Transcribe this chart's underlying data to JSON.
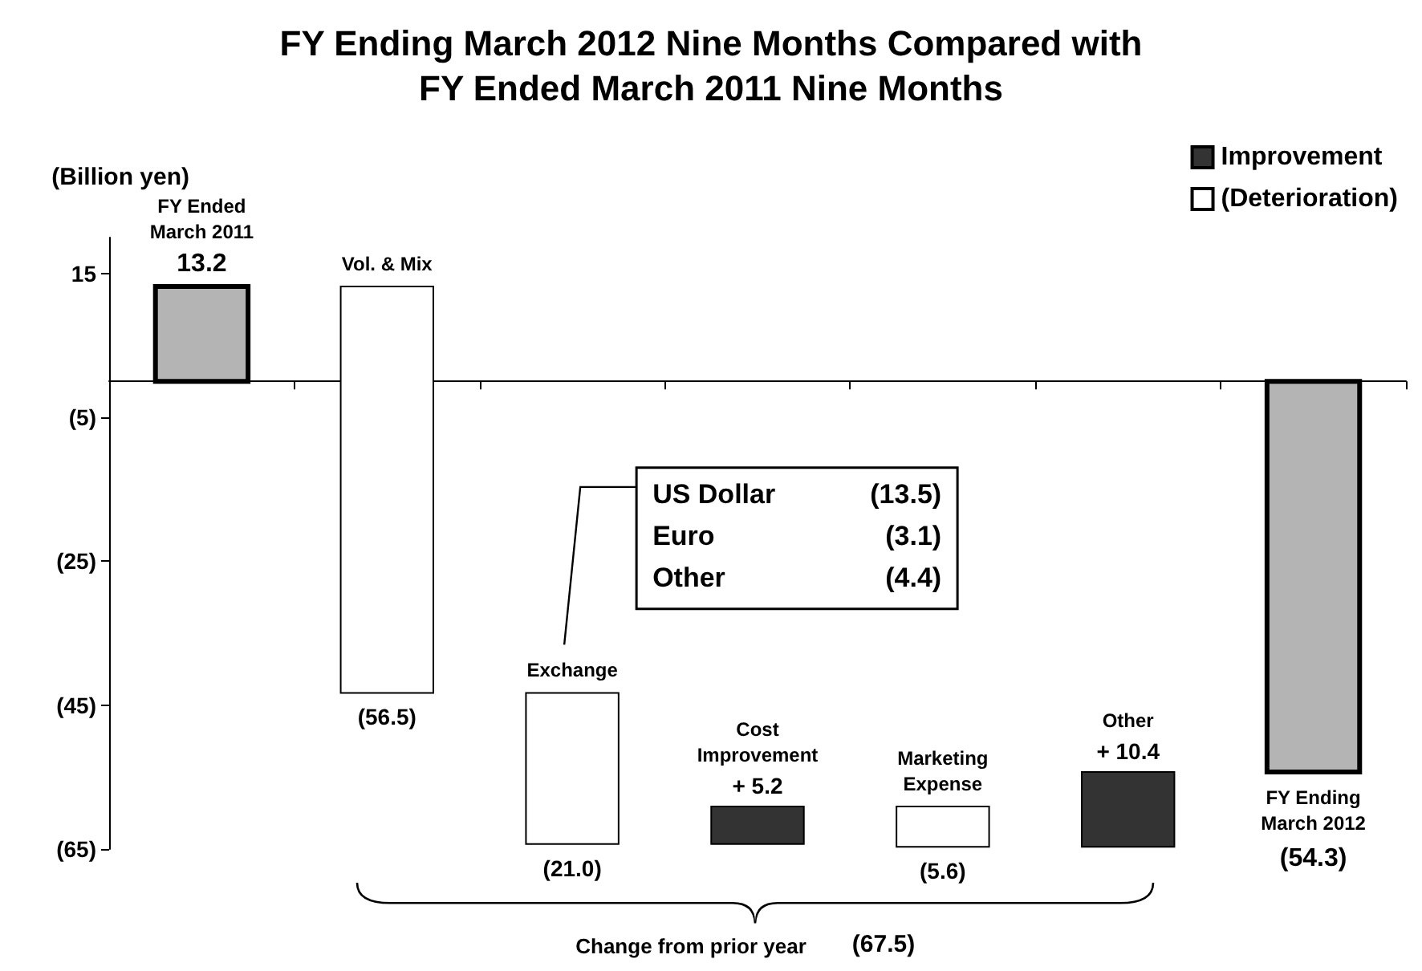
{
  "chart_data": {
    "type": "bar",
    "title": "FY Ending March 2012 Nine Months Compared with\nFY Ended March 2011 Nine Months",
    "ylabel": "(Billion yen)",
    "categories": [
      "FY Ended\nMarch 2011",
      "Vol. & Mix",
      "Exchange",
      "Cost\nImprovement",
      "Marketing\nExpense",
      "Other",
      "FY Ending\nMarch 2012"
    ],
    "series": [
      {
        "name": "Improvement",
        "color": "#333333",
        "values": [
          null,
          null,
          null,
          5.2,
          null,
          10.4,
          null
        ],
        "base": [
          null,
          null,
          null,
          -64.3,
          null,
          -64.7,
          null
        ],
        "value_labels": [
          null,
          null,
          null,
          "+ 5.2",
          null,
          "+ 10.4",
          null
        ]
      },
      {
        "name": "(Deterioration)",
        "color": "#ffffff",
        "values": [
          null,
          -56.5,
          -21.0,
          null,
          -5.6,
          null,
          null
        ],
        "base": [
          null,
          13.2,
          -43.3,
          null,
          -59.1,
          null,
          null
        ],
        "value_labels": [
          null,
          "(56.5)",
          "(21.0)",
          null,
          "(5.6)",
          null,
          null
        ]
      },
      {
        "color": "#b4b4b4",
        "values": [
          13.2,
          null,
          null,
          null,
          null,
          null,
          -54.3
        ],
        "base": [
          0,
          null,
          null,
          null,
          null,
          null,
          0
        ],
        "value_labels": [
          "13.2",
          null,
          null,
          null,
          null,
          null,
          "(54.3)"
        ]
      }
    ],
    "ylim": [
      -65,
      20
    ],
    "yticks": [
      15,
      {
        "value": -5,
        "label": "(5)"
      },
      {
        "value": -25,
        "label": "(25)"
      },
      {
        "value": -45,
        "label": "(45)"
      },
      {
        "value": -65,
        "label": "(65)"
      }
    ],
    "legend": "top right",
    "tick_labels": "y",
    "annotations": [
      "US Dollar (13.5)",
      "Euro (3.1)",
      "Other (4.4)",
      "Change from prior year",
      "(67.5)"
    ]
  }
}
